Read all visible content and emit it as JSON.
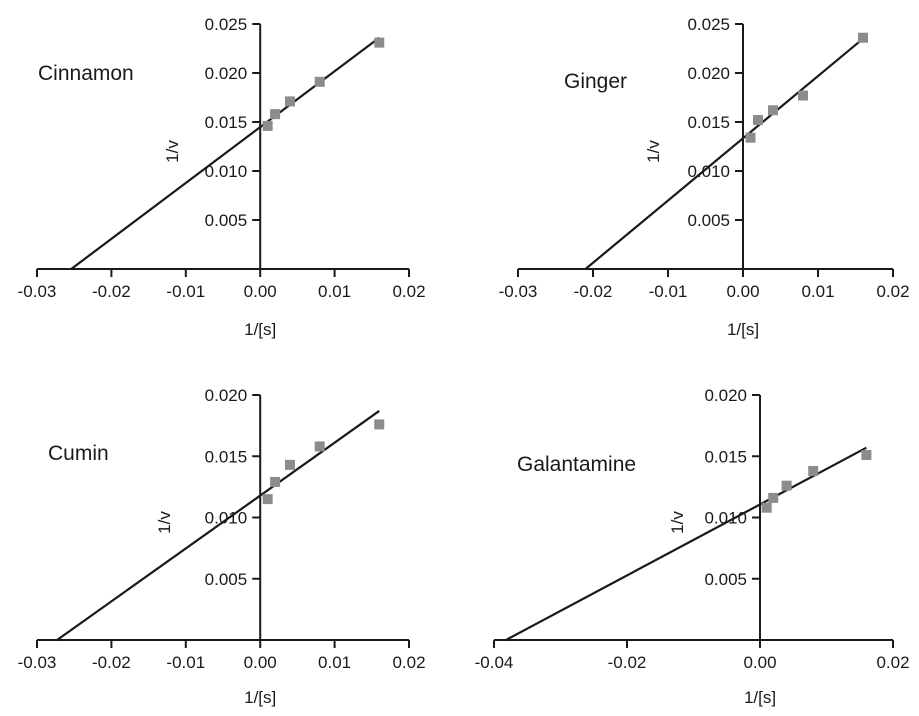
{
  "chart_data": [
    {
      "type": "scatter",
      "title": "Cinnamon",
      "xlabel": "1/[s]",
      "ylabel": "1/v",
      "xlim": [
        -0.03,
        0.02
      ],
      "ylim": [
        0,
        0.025
      ],
      "xticks": [
        "-0.03",
        "-0.02",
        "-0.01",
        "0.00",
        "0.01",
        "0.02"
      ],
      "yticks": [
        "0.005",
        "0.010",
        "0.015",
        "0.020",
        "0.025"
      ],
      "grid": false,
      "series": [
        {
          "x": [
            0.001,
            0.002,
            0.004,
            0.008,
            0.016
          ],
          "y": [
            0.0146,
            0.0158,
            0.0171,
            0.0191,
            0.0231
          ]
        }
      ],
      "fit_line": {
        "x": [
          -0.0254,
          0.016
        ],
        "y": [
          0.0,
          0.0236
        ]
      }
    },
    {
      "type": "scatter",
      "title": "Ginger",
      "xlabel": "1/[s]",
      "ylabel": "1/v",
      "xlim": [
        -0.03,
        0.02
      ],
      "ylim": [
        0,
        0.025
      ],
      "xticks": [
        "-0.03",
        "-0.02",
        "-0.01",
        "0.00",
        "0.01",
        "0.02"
      ],
      "yticks": [
        "0.005",
        "0.010",
        "0.015",
        "0.020",
        "0.025"
      ],
      "grid": false,
      "series": [
        {
          "x": [
            0.001,
            0.002,
            0.004,
            0.008,
            0.016
          ],
          "y": [
            0.0134,
            0.0152,
            0.0162,
            0.0177,
            0.0236
          ]
        }
      ],
      "fit_line": {
        "x": [
          -0.021,
          0.016
        ],
        "y": [
          0.0,
          0.0235
        ]
      }
    },
    {
      "type": "scatter",
      "title": "Cumin",
      "xlabel": "1/[s]",
      "ylabel": "1/v",
      "xlim": [
        -0.03,
        0.02
      ],
      "ylim": [
        0,
        0.02
      ],
      "xticks": [
        "-0.03",
        "-0.02",
        "-0.01",
        "0.00",
        "0.01",
        "0.02"
      ],
      "yticks": [
        "0.005",
        "0.010",
        "0.015",
        "0.020"
      ],
      "grid": false,
      "series": [
        {
          "x": [
            0.001,
            0.002,
            0.004,
            0.008,
            0.016
          ],
          "y": [
            0.0115,
            0.0129,
            0.0143,
            0.0158,
            0.0176
          ]
        }
      ],
      "fit_line": {
        "x": [
          -0.0273,
          0.016
        ],
        "y": [
          0.0,
          0.0187
        ]
      }
    },
    {
      "type": "scatter",
      "title": "Galantamine",
      "xlabel": "1/[s]",
      "ylabel": "1/v",
      "xlim": [
        -0.04,
        0.02
      ],
      "ylim": [
        0,
        0.02
      ],
      "xticks": [
        "-0.04",
        "-0.02",
        "0.00",
        "0.02"
      ],
      "yticks": [
        "0.005",
        "0.010",
        "0.015",
        "0.020"
      ],
      "grid": false,
      "series": [
        {
          "x": [
            0.001,
            0.002,
            0.004,
            0.008,
            0.016
          ],
          "y": [
            0.0108,
            0.0116,
            0.0126,
            0.0138,
            0.0151
          ]
        }
      ],
      "fit_line": {
        "x": [
          -0.0382,
          0.016
        ],
        "y": [
          0.0,
          0.0157
        ]
      }
    }
  ]
}
